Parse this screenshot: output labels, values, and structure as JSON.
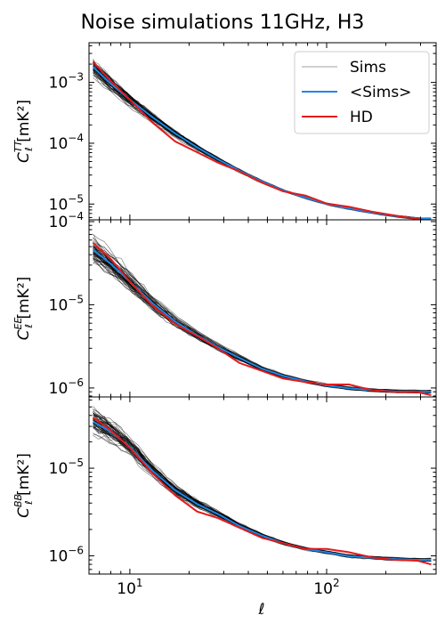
{
  "chart_data": {
    "type": "line",
    "title": "Noise simulations 11GHz, H3",
    "xlabel": "ℓ",
    "xscale": "log",
    "xlim": [
      6.2,
      360
    ],
    "x_ticks": [
      {
        "value": 10,
        "label": "10¹"
      },
      {
        "value": 100,
        "label": "10²"
      }
    ],
    "legend": {
      "placement": "top-right",
      "entries": [
        {
          "name": "Sims",
          "color": "#c0c0c0"
        },
        {
          "name": "<Sims>",
          "color": "#1e88e5"
        },
        {
          "name": "HD",
          "color": "#e41a1c"
        }
      ]
    },
    "ell": [
      6.5,
      8,
      10,
      13,
      17,
      22,
      28,
      36,
      47,
      60,
      78,
      100,
      130,
      170,
      220,
      290,
      340
    ],
    "panels": [
      {
        "ylabel_main": "C",
        "ylabel_sup": "TT",
        "ylabel_sub": "ℓ",
        "ylabel_unit": " [mK²]",
        "yscale": "log",
        "ylim": [
          5.5e-06,
          0.0045
        ],
        "y_ticks": [
          {
            "value": 0.001,
            "base": "10",
            "exp": "−3"
          },
          {
            "value": 0.0001,
            "base": "10",
            "exp": "−4"
          },
          {
            "value": 1e-05,
            "base": "10",
            "exp": "−5"
          }
        ],
        "series": [
          {
            "name": "<Sims>",
            "values": [
              0.0018,
              0.00095,
              0.00052,
              0.00027,
              0.000145,
              8.55e-05,
              5.45e-05,
              3.55e-05,
              2.35e-05,
              1.68e-05,
              1.28e-05,
              1.01e-05,
              8.5e-06,
              7.3e-06,
              6.4e-06,
              5.8e-06,
              5.7e-06
            ]
          },
          {
            "name": "HD",
            "values": [
              0.00218,
              0.00105,
              0.00052,
              0.00022,
              0.000107,
              7.1e-05,
              4.8e-05,
              3.45e-05,
              2.25e-05,
              1.62e-05,
              1.38e-05,
              1.02e-05,
              9e-06,
              7.5e-06,
              6.5e-06,
              5.7e-06,
              5.1e-06
            ]
          }
        ]
      },
      {
        "ylabel_main": "C",
        "ylabel_sup": "EE",
        "ylabel_sub": "ℓ",
        "ylabel_unit": " [mK²]",
        "yscale": "log",
        "ylim": [
          7.8e-07,
          0.000105
        ],
        "y_ticks": [
          {
            "value": 0.0001,
            "base": "10",
            "exp": "−4"
          },
          {
            "value": 1e-05,
            "base": "10",
            "exp": "−5"
          },
          {
            "value": 1e-06,
            "base": "10",
            "exp": "−6"
          }
        ],
        "series": [
          {
            "name": "<Sims>",
            "values": [
              4.6e-05,
              3.1e-05,
              1.9e-05,
              1.05e-05,
              6.3e-06,
              4.3e-06,
              3.1e-06,
              2.3e-06,
              1.7e-06,
              1.4e-06,
              1.2e-06,
              1.07e-06,
              9.9e-07,
              9.4e-07,
              9.1e-07,
              9e-07,
              9e-07
            ]
          },
          {
            "name": "HD",
            "values": [
              5.55e-05,
              3.55e-05,
              1.9e-05,
              9.8e-06,
              5.9e-06,
              4.2e-06,
              3e-06,
              2e-06,
              1.6e-06,
              1.3e-06,
              1.18e-06,
              1.1e-06,
              1.1e-06,
              9.4e-07,
              9e-07,
              8.9e-07,
              8.2e-07
            ]
          }
        ]
      },
      {
        "ylabel_main": "C",
        "ylabel_sup": "BB",
        "ylabel_sub": "ℓ",
        "ylabel_unit": " [mK²]",
        "yscale": "log",
        "ylim": [
          6.2e-07,
          6.5e-05
        ],
        "y_ticks": [
          {
            "value": 1e-05,
            "base": "10",
            "exp": "−5"
          },
          {
            "value": 1e-06,
            "base": "10",
            "exp": "−6"
          }
        ],
        "series": [
          {
            "name": "<Sims>",
            "values": [
              3.4e-05,
              2.6e-05,
              1.75e-05,
              9.4e-06,
              5.6e-06,
              3.9e-06,
              3e-06,
              2.2e-06,
              1.7e-06,
              1.4e-06,
              1.2e-06,
              1.1e-06,
              9.9e-07,
              9.5e-07,
              9.2e-07,
              9e-07,
              9e-07
            ]
          },
          {
            "name": "HD",
            "values": [
              3.8e-05,
              2.7e-05,
              1.7e-05,
              8.8e-06,
              4.9e-06,
              3.2e-06,
              2.7e-06,
              2.1e-06,
              1.6e-06,
              1.4e-06,
              1.2e-06,
              1.2e-06,
              1.1e-06,
              9.6e-07,
              9e-07,
              8.8e-07,
              8e-07
            ]
          }
        ]
      }
    ]
  }
}
